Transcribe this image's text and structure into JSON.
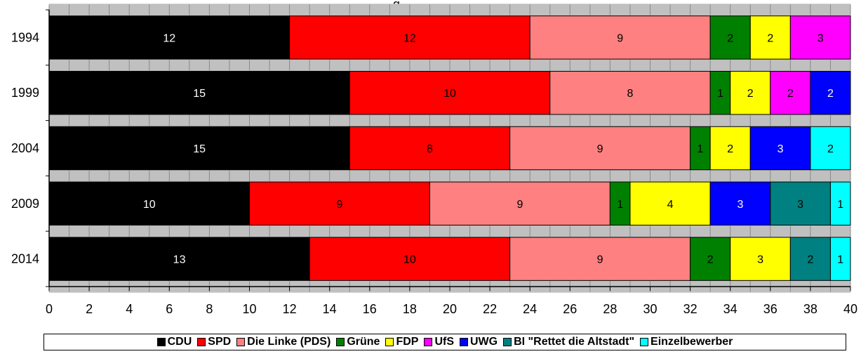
{
  "chart_data": {
    "type": "bar",
    "orientation": "horizontal",
    "stacked": true,
    "title_fragment": "g",
    "categories": [
      "1994",
      "1999",
      "2004",
      "2009",
      "2014"
    ],
    "series": [
      {
        "name": "CDU",
        "color": "#000000",
        "label_color": "#ffffff",
        "values": [
          12,
          15,
          15,
          10,
          13
        ]
      },
      {
        "name": "SPD",
        "color": "#ff0000",
        "label_color": "#000000",
        "values": [
          12,
          10,
          8,
          9,
          10
        ]
      },
      {
        "name": "Die Linke (PDS)",
        "color": "#ff8080",
        "label_color": "#000000",
        "values": [
          9,
          8,
          9,
          9,
          9
        ]
      },
      {
        "name": "Grüne",
        "color": "#008000",
        "label_color": "#000000",
        "values": [
          2,
          1,
          1,
          1,
          2
        ]
      },
      {
        "name": "FDP",
        "color": "#ffff00",
        "label_color": "#000000",
        "values": [
          2,
          2,
          2,
          4,
          3
        ]
      },
      {
        "name": "UfS",
        "color": "#ff00ff",
        "label_color": "#000000",
        "values": [
          3,
          2,
          0,
          0,
          0
        ]
      },
      {
        "name": "UWG",
        "color": "#0000ff",
        "label_color": "#ffffff",
        "values": [
          0,
          2,
          3,
          3,
          0
        ]
      },
      {
        "name": "BI \"Rettet die Altstadt\"",
        "color": "#008080",
        "label_color": "#000000",
        "values": [
          0,
          0,
          0,
          3,
          2
        ]
      },
      {
        "name": "Einzelbewerber",
        "color": "#00ffff",
        "label_color": "#000000",
        "values": [
          0,
          0,
          2,
          1,
          1
        ]
      }
    ],
    "xlim": [
      0,
      40
    ],
    "xticks": [
      0,
      2,
      4,
      6,
      8,
      10,
      12,
      14,
      16,
      18,
      20,
      22,
      24,
      26,
      28,
      30,
      32,
      34,
      36,
      38,
      40
    ],
    "legend_position": "bottom",
    "grid": false
  }
}
